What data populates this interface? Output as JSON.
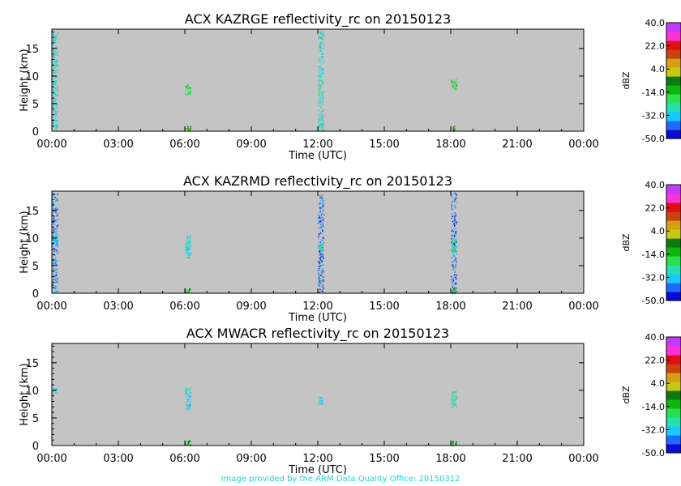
{
  "footer": "Image provided by the ARM Data Quality Office: 20150312",
  "colors": {
    "plot_background": "#c4c4c4",
    "colorbar": [
      "#0b0bd6",
      "#1e6cff",
      "#19c8ff",
      "#26e0b0",
      "#2be04f",
      "#0fb80f",
      "#0d7a12",
      "#c8c810",
      "#d79e10",
      "#c84312",
      "#e01010",
      "#ff30d8",
      "#c43bff"
    ]
  },
  "chart_data": [
    {
      "type": "heatmap",
      "title": "ACX KAZRGE reflectivity_rc on 20150123",
      "xlabel": "Time (UTC)",
      "ylabel": "Height (km)",
      "x_ticks": [
        "00:00",
        "03:00",
        "06:00",
        "09:00",
        "12:00",
        "15:00",
        "18:00",
        "21:00",
        "00:00"
      ],
      "y_ticks": [
        "0",
        "5",
        "10",
        "15"
      ],
      "xlim_hours": [
        0,
        24
      ],
      "ylim_km": [
        0,
        18.5
      ],
      "colorbar": {
        "label": "dBZ",
        "ticks": [
          "40.0",
          "22.0",
          "4.0",
          "-14.0",
          "-32.0",
          "-50.0"
        ],
        "range": [
          -50,
          40
        ]
      },
      "echoes": [
        {
          "t_start": 0.0,
          "t_end": 0.25,
          "z_bottom": 0,
          "z_top": 18.3,
          "dbz": -28,
          "density": 0.55
        },
        {
          "t_start": 6.0,
          "t_end": 6.25,
          "z_bottom": 6.5,
          "z_top": 8.5,
          "dbz": -18,
          "density": 0.7
        },
        {
          "t_start": 6.0,
          "t_end": 6.25,
          "z_bottom": 0,
          "z_top": 1.0,
          "dbz": -5,
          "density": 0.8
        },
        {
          "t_start": 12.0,
          "t_end": 12.25,
          "z_bottom": 0,
          "z_top": 18.3,
          "dbz": -28,
          "density": 0.55
        },
        {
          "t_start": 18.0,
          "t_end": 18.25,
          "z_bottom": 7.5,
          "z_top": 9.5,
          "dbz": -16,
          "density": 0.7
        },
        {
          "t_start": 18.0,
          "t_end": 18.25,
          "z_bottom": 0,
          "z_top": 1.0,
          "dbz": -5,
          "density": 0.8
        }
      ]
    },
    {
      "type": "heatmap",
      "title": "ACX KAZRMD reflectivity_rc on 20150123",
      "xlabel": "Time (UTC)",
      "ylabel": "Height (km)",
      "x_ticks": [
        "00:00",
        "03:00",
        "06:00",
        "09:00",
        "12:00",
        "15:00",
        "18:00",
        "21:00",
        "00:00"
      ],
      "y_ticks": [
        "0",
        "5",
        "10",
        "15"
      ],
      "xlim_hours": [
        0,
        24
      ],
      "ylim_km": [
        0,
        18.5
      ],
      "colorbar": {
        "label": "dBZ",
        "ticks": [
          "40.0",
          "22.0",
          "4.0",
          "-14.0",
          "-32.0",
          "-50.0"
        ],
        "range": [
          -50,
          40
        ]
      },
      "echoes": [
        {
          "t_start": 0.0,
          "t_end": 0.25,
          "z_bottom": 0,
          "z_top": 18.3,
          "dbz": -38,
          "density": 0.45
        },
        {
          "t_start": 0.0,
          "t_end": 0.25,
          "z_bottom": 9.0,
          "z_top": 11.0,
          "dbz": -30,
          "density": 0.8
        },
        {
          "t_start": 6.0,
          "t_end": 6.25,
          "z_bottom": 6.5,
          "z_top": 10.5,
          "dbz": -30,
          "density": 0.7
        },
        {
          "t_start": 6.0,
          "t_end": 6.25,
          "z_bottom": 0,
          "z_top": 1.0,
          "dbz": -8,
          "density": 0.8
        },
        {
          "t_start": 12.0,
          "t_end": 12.25,
          "z_bottom": 0,
          "z_top": 18.3,
          "dbz": -40,
          "density": 0.45
        },
        {
          "t_start": 12.0,
          "t_end": 12.25,
          "z_bottom": 7.5,
          "z_top": 9.0,
          "dbz": -25,
          "density": 0.8
        },
        {
          "t_start": 18.0,
          "t_end": 18.25,
          "z_bottom": 0,
          "z_top": 18.3,
          "dbz": -40,
          "density": 0.4
        },
        {
          "t_start": 18.0,
          "t_end": 18.25,
          "z_bottom": 7.0,
          "z_top": 10.0,
          "dbz": -25,
          "density": 0.8
        },
        {
          "t_start": 18.0,
          "t_end": 18.25,
          "z_bottom": 0,
          "z_top": 1.0,
          "dbz": -8,
          "density": 0.8
        }
      ]
    },
    {
      "type": "heatmap",
      "title": "ACX MWACR reflectivity_rc on 20150123",
      "xlabel": "Time (UTC)",
      "ylabel": "Height (km)",
      "x_ticks": [
        "00:00",
        "03:00",
        "06:00",
        "09:00",
        "12:00",
        "15:00",
        "18:00",
        "21:00",
        "00:00"
      ],
      "y_ticks": [
        "0",
        "5",
        "10",
        "15"
      ],
      "xlim_hours": [
        0,
        24
      ],
      "ylim_km": [
        0,
        18.5
      ],
      "colorbar": {
        "label": "dBZ",
        "ticks": [
          "40.0",
          "22.0",
          "4.0",
          "-14.0",
          "-32.0",
          "-50.0"
        ],
        "range": [
          -50,
          40
        ]
      },
      "echoes": [
        {
          "t_start": 0.0,
          "t_end": 0.2,
          "z_bottom": 9.5,
          "z_top": 10.5,
          "dbz": -30,
          "density": 0.8
        },
        {
          "t_start": 6.0,
          "t_end": 6.25,
          "z_bottom": 6.5,
          "z_top": 10.5,
          "dbz": -30,
          "density": 0.7
        },
        {
          "t_start": 6.0,
          "t_end": 6.25,
          "z_bottom": 0,
          "z_top": 1.0,
          "dbz": -8,
          "density": 0.8
        },
        {
          "t_start": 12.0,
          "t_end": 12.2,
          "z_bottom": 7.5,
          "z_top": 9.0,
          "dbz": -30,
          "density": 0.8
        },
        {
          "t_start": 18.0,
          "t_end": 18.25,
          "z_bottom": 7.0,
          "z_top": 10.0,
          "dbz": -25,
          "density": 0.8
        },
        {
          "t_start": 18.0,
          "t_end": 18.25,
          "z_bottom": 0,
          "z_top": 1.0,
          "dbz": -8,
          "density": 0.8
        }
      ]
    }
  ]
}
